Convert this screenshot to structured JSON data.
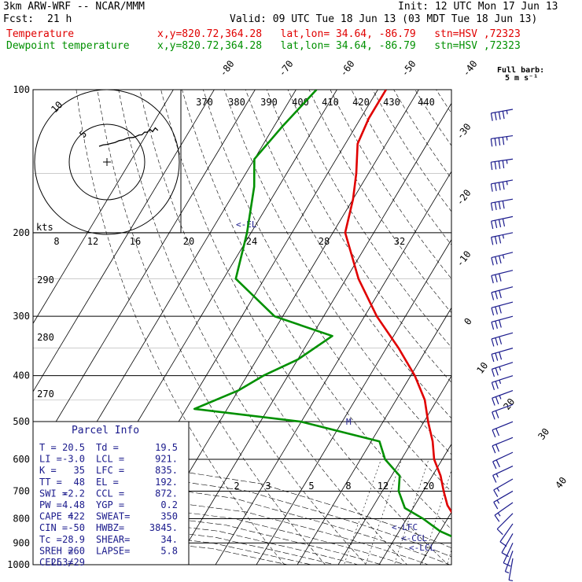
{
  "header": {
    "model": "3km ARW-WRF -- NCAR/MMM",
    "init": "Init: 12 UTC Mon 17 Jun 13",
    "fcst_label": "Fcst:",
    "fcst_value": "21 h",
    "valid": "Valid: 09 UTC Tue 18 Jun 13 (03 MDT Tue 18 Jun 13)",
    "line1_name": "Temperature",
    "line1_info": "x,y=820.72,364.28   lat,lon= 34.64, -86.79   stn=HSV ,72323",
    "line2_name": "Dewpoint temperature",
    "line2_info": "x,y=820.72,364.28   lat,lon= 34.64, -86.79   stn=HSV ,72323"
  },
  "barb_legend": {
    "title": "Full barb:",
    "value": "5 m s⁻¹"
  },
  "hodograph": {
    "ring_labels": [
      "5",
      "10"
    ],
    "kts_label": "kts"
  },
  "parcel_info": {
    "title": "Parcel Info",
    "rows": [
      [
        "T  =",
        "20.5",
        "Td =",
        "19.5"
      ],
      [
        "LI =",
        "-3.0",
        "LCL =",
        "921."
      ],
      [
        "K  =",
        "35",
        "LFC =",
        "835."
      ],
      [
        "TT =",
        "48",
        "EL  =",
        "192."
      ],
      [
        "SWI =",
        "-2.2",
        "CCL =",
        "872."
      ],
      [
        "PW  =",
        "4.48",
        "YGP =",
        "0.2"
      ],
      [
        "CAPE =",
        "422",
        "SWEAT=",
        "350"
      ],
      [
        "CIN  =",
        "-50",
        "HWBZ=",
        "3845."
      ],
      [
        "Tc   =",
        "28.9",
        "SHEAR=",
        "34."
      ],
      [
        "SREH =",
        "260",
        "LAPSE=",
        "5.8"
      ],
      [
        "CELL =",
        "253/29",
        "",
        ""
      ]
    ]
  },
  "level_marks": {
    "el": "<-EL",
    "lfc": "<-LFC",
    "ccl": "<-CCL",
    "lcl": "<-LCL",
    "m": "M"
  },
  "chart_data": {
    "type": "line",
    "title": "",
    "xlabel": "",
    "ylabel": "",
    "pressure_levels": [
      100,
      200,
      300,
      400,
      500,
      600,
      700,
      800,
      900,
      1000
    ],
    "pressure_labels": [
      "100",
      "200",
      "300",
      "400",
      "500",
      "600",
      "700",
      "800",
      "900",
      "1000"
    ],
    "isotherm_labels": [
      "-80",
      "-70",
      "-60",
      "-50",
      "-40",
      "-30",
      "-20",
      "-10",
      "0",
      "10",
      "20",
      "30",
      "40"
    ],
    "theta_labels": [
      "370",
      "380",
      "390",
      "400",
      "410",
      "420",
      "430",
      "440"
    ],
    "theta_low_labels": [
      "290",
      "280",
      "270"
    ],
    "mixing_ratio_labels": [
      "2",
      "3",
      "5",
      "8",
      "12",
      "20"
    ],
    "hodo_speed_labels": [
      "8",
      "12",
      "16",
      "20",
      "24",
      "28",
      "32"
    ],
    "series": [
      {
        "name": "Temperature",
        "color": "#e00000",
        "points": [
          [
            100,
            -68
          ],
          [
            115,
            -68
          ],
          [
            130,
            -67
          ],
          [
            150,
            -63
          ],
          [
            170,
            -60
          ],
          [
            200,
            -57
          ],
          [
            250,
            -47
          ],
          [
            300,
            -37
          ],
          [
            350,
            -27
          ],
          [
            400,
            -19
          ],
          [
            450,
            -13
          ],
          [
            500,
            -9
          ],
          [
            550,
            -5
          ],
          [
            600,
            -2
          ],
          [
            650,
            2
          ],
          [
            700,
            5
          ],
          [
            750,
            8
          ],
          [
            800,
            12
          ],
          [
            850,
            16
          ],
          [
            880,
            19
          ],
          [
            900,
            21
          ],
          [
            925,
            21
          ],
          [
            950,
            20
          ],
          [
            975,
            20.5
          ]
        ]
      },
      {
        "name": "Dewpoint temperature",
        "color": "#009000",
        "points": [
          [
            100,
            -85
          ],
          [
            120,
            -88
          ],
          [
            140,
            -90
          ],
          [
            160,
            -86
          ],
          [
            200,
            -81
          ],
          [
            250,
            -77
          ],
          [
            300,
            -62
          ],
          [
            330,
            -45
          ],
          [
            370,
            -50
          ],
          [
            400,
            -56
          ],
          [
            430,
            -60
          ],
          [
            470,
            -68
          ],
          [
            500,
            -40
          ],
          [
            550,
            -18
          ],
          [
            600,
            -14
          ],
          [
            650,
            -8
          ],
          [
            700,
            -6
          ],
          [
            760,
            -2
          ],
          [
            800,
            4
          ],
          [
            850,
            10
          ],
          [
            880,
            15
          ],
          [
            900,
            17
          ],
          [
            930,
            17
          ],
          [
            960,
            18
          ],
          [
            975,
            19.5
          ]
        ]
      }
    ],
    "wind_barbs": [
      {
        "p": 110,
        "dir": 260,
        "spd": 45
      },
      {
        "p": 125,
        "dir": 262,
        "spd": 45
      },
      {
        "p": 140,
        "dir": 262,
        "spd": 45
      },
      {
        "p": 155,
        "dir": 260,
        "spd": 45
      },
      {
        "p": 170,
        "dir": 260,
        "spd": 40
      },
      {
        "p": 185,
        "dir": 258,
        "spd": 40
      },
      {
        "p": 200,
        "dir": 258,
        "spd": 35
      },
      {
        "p": 220,
        "dir": 256,
        "spd": 35
      },
      {
        "p": 240,
        "dir": 256,
        "spd": 30
      },
      {
        "p": 260,
        "dir": 255,
        "spd": 30
      },
      {
        "p": 280,
        "dir": 255,
        "spd": 30
      },
      {
        "p": 300,
        "dir": 255,
        "spd": 30
      },
      {
        "p": 325,
        "dir": 254,
        "spd": 30
      },
      {
        "p": 350,
        "dir": 254,
        "spd": 30
      },
      {
        "p": 375,
        "dir": 252,
        "spd": 25
      },
      {
        "p": 400,
        "dir": 252,
        "spd": 25
      },
      {
        "p": 430,
        "dir": 250,
        "spd": 25
      },
      {
        "p": 460,
        "dir": 250,
        "spd": 20
      },
      {
        "p": 500,
        "dir": 248,
        "spd": 20
      },
      {
        "p": 540,
        "dir": 248,
        "spd": 20
      },
      {
        "p": 580,
        "dir": 245,
        "spd": 20
      },
      {
        "p": 620,
        "dir": 245,
        "spd": 15
      },
      {
        "p": 660,
        "dir": 240,
        "spd": 15
      },
      {
        "p": 700,
        "dir": 240,
        "spd": 15
      },
      {
        "p": 740,
        "dir": 235,
        "spd": 15
      },
      {
        "p": 780,
        "dir": 225,
        "spd": 10
      },
      {
        "p": 820,
        "dir": 215,
        "spd": 10
      },
      {
        "p": 860,
        "dir": 210,
        "spd": 10
      },
      {
        "p": 900,
        "dir": 205,
        "spd": 10
      },
      {
        "p": 935,
        "dir": 200,
        "spd": 5
      },
      {
        "p": 970,
        "dir": 190,
        "spd": 5
      }
    ],
    "hodograph_trace": [
      [
        0,
        0
      ],
      [
        3,
        2
      ],
      [
        6,
        3
      ],
      [
        9,
        4
      ],
      [
        12,
        6
      ],
      [
        15,
        8
      ],
      [
        18,
        10
      ],
      [
        22,
        12
      ],
      [
        26,
        14
      ],
      [
        30,
        16
      ],
      [
        32,
        18
      ],
      [
        34,
        20
      ],
      [
        36,
        22
      ],
      [
        38,
        24
      ],
      [
        40,
        23
      ],
      [
        42,
        26
      ],
      [
        44,
        25
      ]
    ]
  }
}
